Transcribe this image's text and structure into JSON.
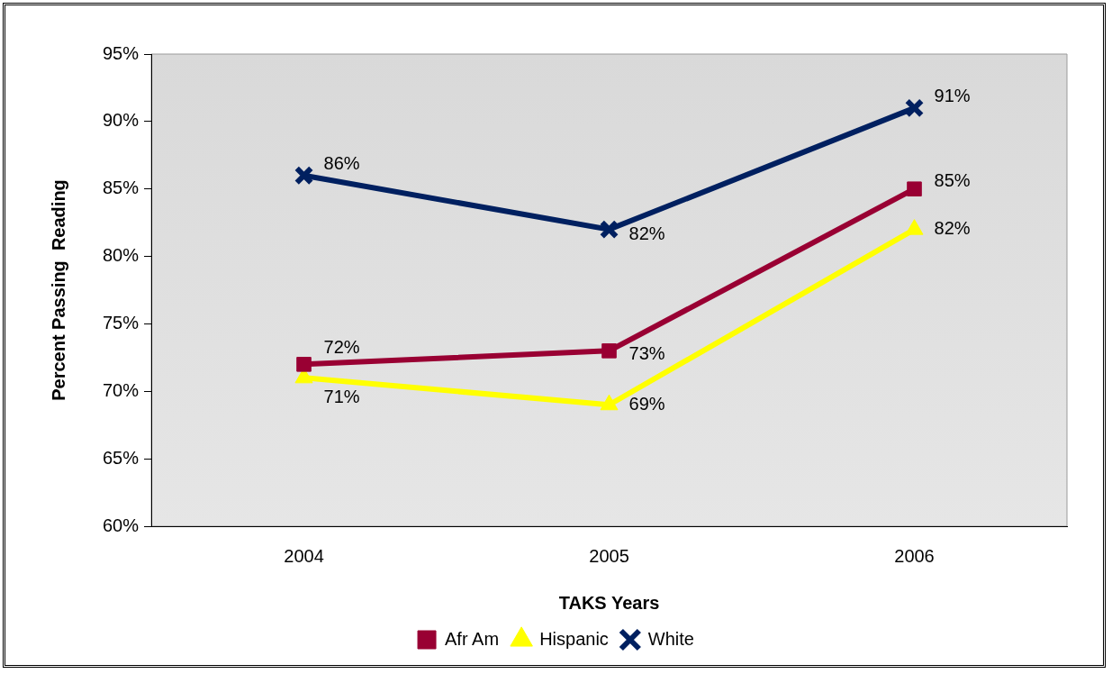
{
  "chart_data": {
    "type": "line",
    "xlabel": "TAKS Years",
    "ylabel": "Percent Passing  Reading",
    "categories": [
      "2004",
      "2005",
      "2006"
    ],
    "ylim": [
      60,
      95
    ],
    "yticks": [
      {
        "value": 60,
        "label": "60%"
      },
      {
        "value": 65,
        "label": "65%"
      },
      {
        "value": 70,
        "label": "70%"
      },
      {
        "value": 75,
        "label": "75%"
      },
      {
        "value": 80,
        "label": "80%"
      },
      {
        "value": 85,
        "label": "85%"
      },
      {
        "value": 90,
        "label": "90%"
      },
      {
        "value": 95,
        "label": "95%"
      }
    ],
    "series": [
      {
        "name": "Afr Am",
        "color": "#990033",
        "marker": "square",
        "values": [
          72,
          73,
          85
        ],
        "value_labels": [
          "72%",
          "73%",
          "85%"
        ]
      },
      {
        "name": "Hispanic",
        "color": "#ffff00",
        "marker": "triangle",
        "values": [
          71,
          69,
          82
        ],
        "value_labels": [
          "71%",
          "69%",
          "82%"
        ]
      },
      {
        "name": "White",
        "color": "#002060",
        "marker": "cross",
        "values": [
          86,
          82,
          91
        ],
        "value_labels": [
          "86%",
          "82%",
          "91%"
        ]
      }
    ],
    "legend": "bottom",
    "line_style": "solid"
  }
}
